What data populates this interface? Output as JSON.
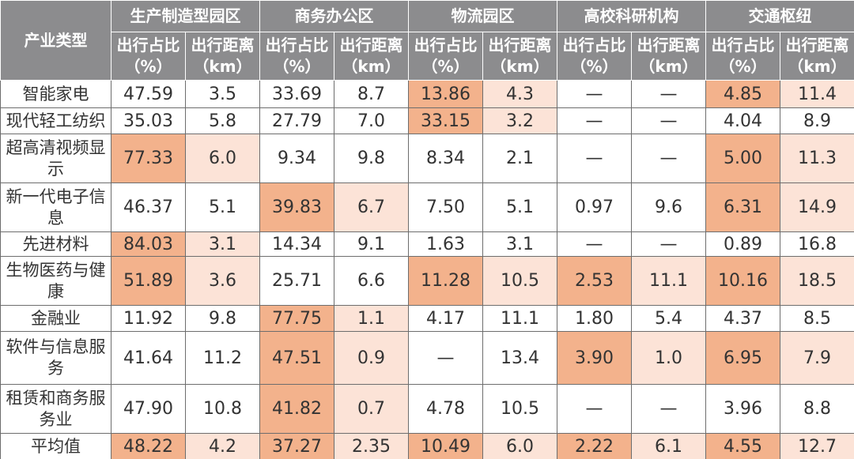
{
  "table": {
    "corner": "产业类型",
    "groups": [
      "生产制造型园区",
      "商务办公区",
      "物流园区",
      "高校科研机构",
      "交通枢纽"
    ],
    "sub_headers": [
      "出行占比（%）",
      "出行距离（km）"
    ],
    "rows": [
      {
        "name": "智能家电",
        "cells": [
          "47.59",
          "3.5",
          "33.69",
          "8.7",
          "13.86",
          "4.3",
          "—",
          "—",
          "4.85",
          "11.4"
        ],
        "highlight_groups": [
          2,
          4
        ]
      },
      {
        "name": "现代轻工纺织",
        "cells": [
          "35.03",
          "5.8",
          "27.79",
          "7.0",
          "33.15",
          "3.2",
          "—",
          "—",
          "4.04",
          "8.9"
        ],
        "highlight_groups": [
          2
        ]
      },
      {
        "name": "超高清视频显示",
        "cells": [
          "77.33",
          "6.0",
          "9.34",
          "9.8",
          "8.34",
          "2.1",
          "—",
          "—",
          "5.00",
          "11.3"
        ],
        "highlight_groups": [
          0,
          4
        ]
      },
      {
        "name": "新一代电子信息",
        "cells": [
          "46.37",
          "5.1",
          "39.83",
          "6.7",
          "7.50",
          "5.1",
          "0.97",
          "9.6",
          "6.31",
          "14.9"
        ],
        "highlight_groups": [
          1,
          4
        ]
      },
      {
        "name": "先进材料",
        "cells": [
          "84.03",
          "3.1",
          "14.34",
          "9.1",
          "1.63",
          "3.1",
          "—",
          "—",
          "0.89",
          "16.8"
        ],
        "highlight_groups": [
          0
        ]
      },
      {
        "name": "生物医药与健康",
        "cells": [
          "51.89",
          "3.6",
          "25.71",
          "6.6",
          "11.28",
          "10.5",
          "2.53",
          "11.1",
          "10.16",
          "18.5"
        ],
        "highlight_groups": [
          0,
          2,
          3,
          4
        ]
      },
      {
        "name": "金融业",
        "cells": [
          "11.92",
          "9.8",
          "77.75",
          "1.1",
          "4.17",
          "11.1",
          "1.80",
          "5.4",
          "4.37",
          "8.5"
        ],
        "highlight_groups": [
          1
        ]
      },
      {
        "name": "软件与信息服务",
        "cells": [
          "41.64",
          "11.2",
          "47.51",
          "0.9",
          "—",
          "13.4",
          "3.90",
          "1.0",
          "6.95",
          "7.9"
        ],
        "highlight_groups": [
          1,
          3,
          4
        ]
      },
      {
        "name": "租赁和商务服务业",
        "cells": [
          "47.90",
          "10.8",
          "41.82",
          "0.7",
          "4.78",
          "10.5",
          "—",
          "—",
          "3.96",
          "8.8"
        ],
        "highlight_groups": [
          1
        ]
      },
      {
        "name": "平均值",
        "cells": [
          "48.22",
          "4.2",
          "37.27",
          "2.35",
          "10.49",
          "6.0",
          "2.22",
          "6.1",
          "4.55",
          "12.7"
        ],
        "highlight_groups": [
          0,
          1,
          2,
          3,
          4
        ]
      }
    ]
  }
}
